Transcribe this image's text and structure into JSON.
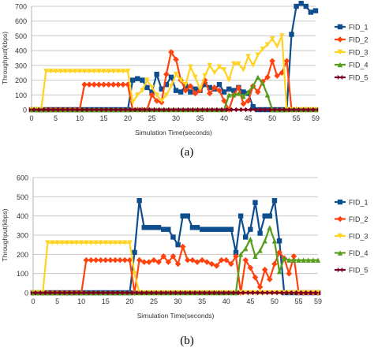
{
  "chart_data": [
    {
      "type": "line",
      "caption": "(a)",
      "xlabel": "Simulation Time(seconds)",
      "ylabel": "Throughput(kbps)",
      "ylim": [
        0,
        700
      ],
      "yticks": [
        0,
        100,
        200,
        300,
        400,
        500,
        600,
        700
      ],
      "xlim": [
        0,
        59
      ],
      "xticks": [
        0,
        5,
        10,
        15,
        20,
        25,
        30,
        35,
        40,
        45,
        50,
        55,
        59
      ],
      "grid": "horizontal",
      "legend_position": "right",
      "series": [
        {
          "name": "FID_1",
          "color": "#0e4d8e",
          "marker": "square",
          "points": [
            [
              0,
              0
            ],
            [
              5,
              0
            ],
            [
              10,
              0
            ],
            [
              15,
              0
            ],
            [
              20,
              0
            ],
            [
              21,
              200
            ],
            [
              22,
              210
            ],
            [
              23,
              200
            ],
            [
              24,
              150
            ],
            [
              25,
              120
            ],
            [
              26,
              240
            ],
            [
              27,
              140
            ],
            [
              28,
              170
            ],
            [
              29,
              220
            ],
            [
              30,
              130
            ],
            [
              31,
              120
            ],
            [
              32,
              160
            ],
            [
              33,
              120
            ],
            [
              34,
              140
            ],
            [
              35,
              130
            ],
            [
              36,
              170
            ],
            [
              37,
              150
            ],
            [
              38,
              140
            ],
            [
              39,
              170
            ],
            [
              40,
              120
            ],
            [
              41,
              140
            ],
            [
              42,
              130
            ],
            [
              43,
              150
            ],
            [
              44,
              120
            ],
            [
              45,
              110
            ],
            [
              46,
              20
            ],
            [
              47,
              0
            ],
            [
              48,
              0
            ],
            [
              49,
              0
            ],
            [
              50,
              0
            ],
            [
              51,
              0
            ],
            [
              52,
              0
            ],
            [
              53,
              0
            ],
            [
              54,
              510
            ],
            [
              55,
              700
            ],
            [
              56,
              720
            ],
            [
              57,
              700
            ],
            [
              58,
              660
            ],
            [
              59,
              670
            ]
          ]
        },
        {
          "name": "FID_2",
          "color": "#ff420e",
          "marker": "diamond",
          "points": [
            [
              0,
              0
            ],
            [
              9,
              0
            ],
            [
              10,
              0
            ],
            [
              11,
              170
            ],
            [
              12,
              170
            ],
            [
              15,
              170
            ],
            [
              18,
              170
            ],
            [
              20,
              170
            ],
            [
              21,
              0
            ],
            [
              22,
              0
            ],
            [
              23,
              0
            ],
            [
              24,
              0
            ],
            [
              25,
              100
            ],
            [
              26,
              60
            ],
            [
              27,
              50
            ],
            [
              28,
              240
            ],
            [
              29,
              390
            ],
            [
              30,
              340
            ],
            [
              31,
              200
            ],
            [
              32,
              130
            ],
            [
              33,
              160
            ],
            [
              34,
              110
            ],
            [
              35,
              130
            ],
            [
              36,
              200
            ],
            [
              37,
              110
            ],
            [
              38,
              150
            ],
            [
              39,
              130
            ],
            [
              40,
              60
            ],
            [
              41,
              0
            ],
            [
              42,
              100
            ],
            [
              43,
              150
            ],
            [
              44,
              40
            ],
            [
              45,
              60
            ],
            [
              46,
              160
            ],
            [
              47,
              120
            ],
            [
              48,
              190
            ],
            [
              49,
              220
            ],
            [
              50,
              330
            ],
            [
              51,
              230
            ],
            [
              52,
              250
            ],
            [
              53,
              330
            ],
            [
              54,
              0
            ],
            [
              59,
              0
            ]
          ]
        },
        {
          "name": "FID_3",
          "color": "#ffd320",
          "marker": "triangle-down",
          "points": [
            [
              0,
              0
            ],
            [
              2,
              0
            ],
            [
              3,
              260
            ],
            [
              5,
              260
            ],
            [
              10,
              260
            ],
            [
              15,
              260
            ],
            [
              19,
              260
            ],
            [
              20,
              260
            ],
            [
              21,
              50
            ],
            [
              22,
              100
            ],
            [
              23,
              130
            ],
            [
              24,
              200
            ],
            [
              25,
              150
            ],
            [
              26,
              100
            ],
            [
              27,
              60
            ],
            [
              28,
              100
            ],
            [
              29,
              160
            ],
            [
              30,
              240
            ],
            [
              31,
              200
            ],
            [
              32,
              170
            ],
            [
              33,
              290
            ],
            [
              34,
              220
            ],
            [
              35,
              140
            ],
            [
              36,
              230
            ],
            [
              37,
              300
            ],
            [
              38,
              250
            ],
            [
              39,
              290
            ],
            [
              40,
              270
            ],
            [
              41,
              200
            ],
            [
              42,
              310
            ],
            [
              43,
              310
            ],
            [
              44,
              270
            ],
            [
              45,
              360
            ],
            [
              46,
              300
            ],
            [
              47,
              370
            ],
            [
              48,
              410
            ],
            [
              49,
              440
            ],
            [
              50,
              480
            ],
            [
              51,
              430
            ],
            [
              52,
              500
            ],
            [
              53,
              0
            ],
            [
              54,
              0
            ],
            [
              59,
              0
            ]
          ]
        },
        {
          "name": "FID_4",
          "color": "#579d1c",
          "marker": "triangle-up",
          "points": [
            [
              0,
              0
            ],
            [
              40,
              0
            ],
            [
              41,
              100
            ],
            [
              42,
              100
            ],
            [
              43,
              110
            ],
            [
              44,
              90
            ],
            [
              45,
              120
            ],
            [
              46,
              160
            ],
            [
              47,
              220
            ],
            [
              48,
              180
            ],
            [
              49,
              100
            ],
            [
              50,
              0
            ],
            [
              51,
              0
            ],
            [
              59,
              0
            ]
          ]
        },
        {
          "name": "FID_5",
          "color": "#7e0021",
          "marker": "bowtie",
          "points": [
            [
              0,
              0
            ],
            [
              59,
              0
            ]
          ]
        }
      ]
    },
    {
      "type": "line",
      "caption": "(b)",
      "xlabel": "Simulation Time(seconds)",
      "ylabel": "Throughput(kbps)",
      "ylim": [
        0,
        600
      ],
      "yticks": [
        0,
        100,
        200,
        300,
        400,
        500,
        600
      ],
      "xlim": [
        0,
        59
      ],
      "xticks": [
        0,
        5,
        10,
        15,
        20,
        25,
        30,
        35,
        40,
        45,
        50,
        55,
        59
      ],
      "grid": "horizontal",
      "legend_position": "right",
      "legend_visible_labels": [
        "FID_1",
        "FID_2",
        "FID_3",
        "FID_4",
        "FID_5"
      ],
      "series": [
        {
          "name": "FID_1",
          "color": "#0e4d8e",
          "marker": "square",
          "points": [
            [
              0,
              0
            ],
            [
              20,
              0
            ],
            [
              21,
              210
            ],
            [
              22,
              480
            ],
            [
              23,
              340
            ],
            [
              24,
              340
            ],
            [
              25,
              340
            ],
            [
              26,
              340
            ],
            [
              27,
              330
            ],
            [
              28,
              330
            ],
            [
              29,
              290
            ],
            [
              30,
              250
            ],
            [
              31,
              400
            ],
            [
              32,
              400
            ],
            [
              33,
              340
            ],
            [
              34,
              340
            ],
            [
              35,
              330
            ],
            [
              36,
              330
            ],
            [
              37,
              330
            ],
            [
              38,
              330
            ],
            [
              39,
              330
            ],
            [
              40,
              330
            ],
            [
              41,
              330
            ],
            [
              42,
              210
            ],
            [
              43,
              400
            ],
            [
              44,
              290
            ],
            [
              45,
              330
            ],
            [
              46,
              470
            ],
            [
              47,
              310
            ],
            [
              48,
              400
            ],
            [
              49,
              400
            ],
            [
              50,
              480
            ],
            [
              51,
              270
            ],
            [
              52,
              0
            ],
            [
              53,
              0
            ],
            [
              59,
              0
            ]
          ]
        },
        {
          "name": "FID_2",
          "color": "#ff420e",
          "marker": "diamond",
          "points": [
            [
              0,
              0
            ],
            [
              10,
              0
            ],
            [
              11,
              170
            ],
            [
              12,
              170
            ],
            [
              15,
              170
            ],
            [
              18,
              170
            ],
            [
              20,
              170
            ],
            [
              21,
              0
            ],
            [
              22,
              170
            ],
            [
              23,
              160
            ],
            [
              24,
              160
            ],
            [
              25,
              170
            ],
            [
              26,
              160
            ],
            [
              27,
              190
            ],
            [
              28,
              160
            ],
            [
              29,
              190
            ],
            [
              30,
              150
            ],
            [
              31,
              240
            ],
            [
              32,
              170
            ],
            [
              33,
              170
            ],
            [
              34,
              160
            ],
            [
              35,
              170
            ],
            [
              36,
              160
            ],
            [
              37,
              150
            ],
            [
              38,
              140
            ],
            [
              39,
              170
            ],
            [
              40,
              170
            ],
            [
              41,
              150
            ],
            [
              42,
              190
            ],
            [
              43,
              0
            ],
            [
              44,
              170
            ],
            [
              45,
              130
            ],
            [
              46,
              80
            ],
            [
              47,
              30
            ],
            [
              48,
              120
            ],
            [
              49,
              70
            ],
            [
              50,
              150
            ],
            [
              51,
              210
            ],
            [
              52,
              180
            ],
            [
              53,
              100
            ],
            [
              54,
              190
            ],
            [
              55,
              0
            ],
            [
              56,
              0
            ],
            [
              59,
              0
            ]
          ]
        },
        {
          "name": "FID_3",
          "color": "#ffd320",
          "marker": "triangle-down",
          "points": [
            [
              0,
              0
            ],
            [
              2,
              0
            ],
            [
              3,
              260
            ],
            [
              5,
              260
            ],
            [
              10,
              260
            ],
            [
              15,
              260
            ],
            [
              19,
              260
            ],
            [
              20,
              260
            ],
            [
              21,
              100
            ],
            [
              22,
              0
            ],
            [
              23,
              0
            ],
            [
              59,
              0
            ]
          ]
        },
        {
          "name": "FID_4",
          "color": "#579d1c",
          "marker": "triangle-up",
          "points": [
            [
              0,
              0
            ],
            [
              42,
              0
            ],
            [
              43,
              200
            ],
            [
              44,
              230
            ],
            [
              45,
              280
            ],
            [
              46,
              190
            ],
            [
              47,
              220
            ],
            [
              48,
              270
            ],
            [
              49,
              340
            ],
            [
              50,
              270
            ],
            [
              51,
              110
            ],
            [
              52,
              180
            ],
            [
              53,
              170
            ],
            [
              54,
              170
            ],
            [
              55,
              170
            ],
            [
              56,
              170
            ],
            [
              57,
              170
            ],
            [
              58,
              170
            ],
            [
              59,
              170
            ]
          ]
        },
        {
          "name": "FID_5",
          "color": "#7e0021",
          "marker": "bowtie",
          "points": [
            [
              0,
              0
            ],
            [
              59,
              0
            ]
          ]
        }
      ]
    }
  ]
}
